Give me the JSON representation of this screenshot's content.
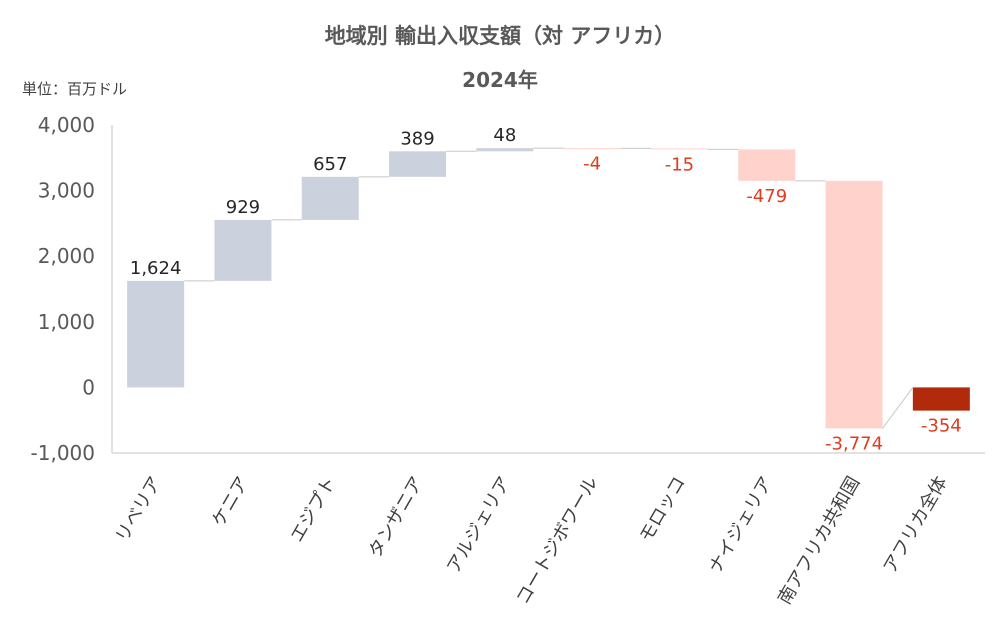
{
  "title": "地域別 輸出入収支額（対 アフリカ）",
  "subtitle": "2024年",
  "unit_label": "単位：百万ドル",
  "colors": {
    "positive": "#cbd1dd",
    "negative": "#ffd3cb",
    "total": "#b22a0c",
    "negative_label": "#e23b1d",
    "positive_label": "#262626",
    "connector": "#c8c8c8",
    "axis": "#d9d9d9"
  },
  "chart_data": {
    "type": "bar",
    "subtype": "waterfall",
    "title": "地域別 輸出入収支額（対 アフリカ）",
    "subtitle": "2024年",
    "ylabel": "",
    "xlabel": "",
    "ylim": [
      -1000,
      4000
    ],
    "yticks": [
      -1000,
      0,
      1000,
      2000,
      3000,
      4000
    ],
    "ytick_labels": [
      "-1,000",
      "0",
      "1,000",
      "2,000",
      "3,000",
      "4,000"
    ],
    "grid": false,
    "legend": "none",
    "categories": [
      "リベリア",
      "ケニア",
      "エジプト",
      "タンザニア",
      "アルジェリア",
      "コートジボワール",
      "モロッコ",
      "ナイジェリア",
      "南アフリカ共和国",
      "アフリカ全体"
    ],
    "values": [
      1624,
      929,
      657,
      389,
      48,
      -4,
      -15,
      -479,
      -3774,
      -354
    ],
    "value_labels": [
      "1,624",
      "929",
      "657",
      "389",
      "48",
      "-4",
      "-15",
      "-479",
      "-3,774",
      "-354"
    ],
    "is_total": [
      false,
      false,
      false,
      false,
      false,
      false,
      false,
      false,
      false,
      true
    ]
  }
}
